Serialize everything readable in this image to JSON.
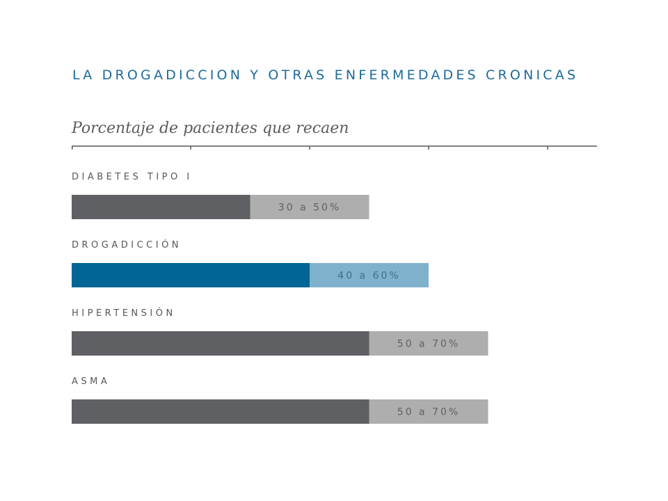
{
  "chart_data": {
    "type": "bar",
    "title": "LA DROGADICCION Y OTRAS ENFERMEDADES CRONICAS",
    "subtitle": "Porcentaje de pacientes que recaen",
    "xlim": [
      0,
      100
    ],
    "grid": false,
    "categories": [
      "DIABETES TIPO I",
      "DROGADICCIÓN",
      "HIPERTENSIÓN",
      "ASMA"
    ],
    "series": [
      {
        "low": 30,
        "high": 50,
        "label": "30 a 50%"
      },
      {
        "low": 40,
        "high": 60,
        "label": "40 a 60%"
      },
      {
        "low": 50,
        "high": 70,
        "label": "50 a 70%"
      },
      {
        "low": 50,
        "high": 70,
        "label": "50 a 70%"
      }
    ],
    "colors": {
      "title": "#1d6a9a",
      "axis": "#55575b",
      "base_default": "#5f6063",
      "range_default": "#aeaeae",
      "range_text_default": "#5f6063",
      "base_highlight": "#036595",
      "range_highlight": "#7fb1cc",
      "range_text_highlight": "#3b6f8c"
    },
    "highlight_index": 1
  }
}
